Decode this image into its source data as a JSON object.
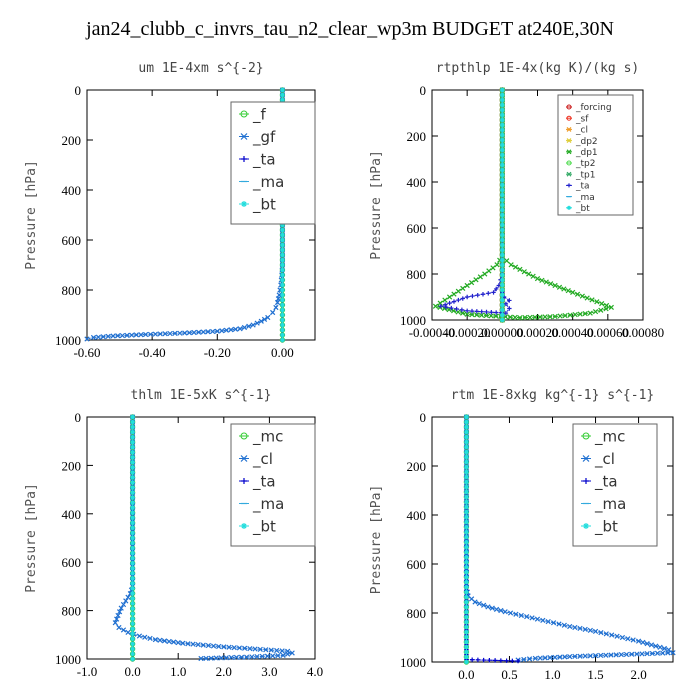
{
  "page": {
    "title": "jan24_clubb_c_invrs_tau_n2_clear_wp3m  BUDGET at240E,30N"
  },
  "chart_data": [
    {
      "type": "line",
      "title": "um   1E-4xm s^{-2}",
      "ylabel": "Pressure [hPa]",
      "xlim": [
        -0.6,
        0.1
      ],
      "ylim": [
        1000,
        0
      ],
      "xticks": [
        -0.6,
        -0.4,
        -0.2,
        0.0
      ],
      "xtick_labels": [
        "-0.60",
        "-0.40",
        "-0.20",
        "0.00"
      ],
      "yticks": [
        0,
        200,
        400,
        600,
        800,
        1000
      ],
      "ytick_labels": [
        "0",
        "200",
        "400",
        "600",
        "800",
        "1000"
      ],
      "legend_placement": "top-right",
      "series": [
        {
          "name": "_f",
          "color": "#33cc33",
          "marker": "o",
          "x": [
            0,
            0
          ],
          "y": [
            0,
            1000
          ]
        },
        {
          "name": "_gf",
          "color": "#1f6fd0",
          "marker": "x",
          "x": [
            0,
            0,
            -0.002,
            -0.005,
            -0.01,
            -0.015,
            -0.02,
            -0.03,
            -0.045,
            -0.065,
            -0.09,
            -0.13,
            -0.2,
            -0.3,
            -0.42,
            -0.52,
            -0.58,
            -0.6
          ],
          "y": [
            0,
            700,
            740,
            780,
            820,
            850,
            870,
            890,
            910,
            925,
            940,
            955,
            965,
            972,
            978,
            984,
            990,
            996
          ]
        },
        {
          "name": "_ta",
          "color": "#0000cc",
          "marker": "+",
          "x": [
            0,
            0
          ],
          "y": [
            0,
            1000
          ]
        },
        {
          "name": "_ma",
          "color": "#33aadd",
          "marker": "-",
          "x": [
            0,
            0
          ],
          "y": [
            0,
            1000
          ]
        },
        {
          "name": "_bt",
          "color": "#22dddd",
          "marker": "*",
          "x": [
            0,
            0
          ],
          "y": [
            0,
            1000
          ]
        }
      ]
    },
    {
      "type": "line",
      "title": "rtpthlp   1E-4x(kg K)/(kg s)",
      "ylabel": "Pressure [hPa]",
      "xlim": [
        -0.0004,
        0.0008
      ],
      "ylim": [
        1000,
        0
      ],
      "xticks": [
        -0.0004,
        -0.0002,
        0.0,
        0.0002,
        0.0004,
        0.0006,
        0.0008
      ],
      "xtick_labels": [
        "-0.00040",
        "-0.00020",
        "0.00000",
        "0.00020",
        "0.00040",
        "0.00060",
        "0.00080"
      ],
      "yticks": [
        0,
        200,
        400,
        600,
        800,
        1000
      ],
      "ytick_labels": [
        "0",
        "200",
        "400",
        "600",
        "800",
        "1000"
      ],
      "legend_placement": "top-right",
      "series": [
        {
          "name": "_forcing",
          "color": "#cc2222",
          "marker": "o",
          "x": [
            0,
            0
          ],
          "y": [
            0,
            1000
          ]
        },
        {
          "name": "_sf",
          "color": "#ee3322",
          "marker": "o",
          "x": [
            0,
            0
          ],
          "y": [
            0,
            1000
          ]
        },
        {
          "name": "_cl",
          "color": "#ee9922",
          "marker": "x",
          "x": [
            0,
            0
          ],
          "y": [
            0,
            1000
          ]
        },
        {
          "name": "_dp2",
          "color": "#ddcc33",
          "marker": "x",
          "x": [
            0,
            0
          ],
          "y": [
            0,
            1000
          ]
        },
        {
          "name": "_dp1",
          "color": "#22aa22",
          "marker": "x",
          "x": [
            0,
            0,
            -3e-05,
            -0.0001,
            -0.0002,
            -0.0003,
            -0.00038,
            -0.0002,
            0.0001,
            0.0003,
            0.0005,
            0.00062,
            0.0004,
            0.0002,
            5e-05,
            0
          ],
          "y": [
            0,
            720,
            760,
            800,
            850,
            900,
            940,
            975,
            990,
            985,
            970,
            945,
            880,
            820,
            760,
            725
          ]
        },
        {
          "name": "_tp2",
          "color": "#55dd55",
          "marker": "o",
          "x": [
            0,
            0
          ],
          "y": [
            0,
            1000
          ]
        },
        {
          "name": "_tp1",
          "color": "#33aa66",
          "marker": "x",
          "x": [
            0,
            0
          ],
          "y": [
            0,
            1000
          ]
        },
        {
          "name": "_ta",
          "color": "#2222cc",
          "marker": "+",
          "x": [
            0,
            0,
            -2e-05,
            -5e-05,
            -0.0002,
            -0.00035,
            -0.0002,
            2e-05,
            4e-05,
            2e-05,
            4e-05,
            1e-05,
            0
          ],
          "y": [
            0,
            800,
            850,
            880,
            900,
            940,
            960,
            970,
            950,
            930,
            915,
            900,
            880
          ]
        },
        {
          "name": "_ma",
          "color": "#33aadd",
          "marker": "-",
          "x": [
            0,
            0
          ],
          "y": [
            0,
            1000
          ]
        },
        {
          "name": "_bt",
          "color": "#22dddd",
          "marker": "*",
          "x": [
            0,
            0
          ],
          "y": [
            0,
            1000
          ]
        }
      ]
    },
    {
      "type": "line",
      "title": "thlm   1E-5xK s^{-1}",
      "ylabel": "Pressure [hPa]",
      "xlim": [
        -1.0,
        4.0
      ],
      "ylim": [
        1000,
        0
      ],
      "xticks": [
        -1.0,
        0.0,
        1.0,
        2.0,
        3.0,
        4.0
      ],
      "xtick_labels": [
        "-1.0",
        "0.0",
        "1.0",
        "2.0",
        "3.0",
        "4.0"
      ],
      "yticks": [
        0,
        200,
        400,
        600,
        800,
        1000
      ],
      "ytick_labels": [
        "0",
        "200",
        "400",
        "600",
        "800",
        "1000"
      ],
      "legend_placement": "top-right",
      "series": [
        {
          "name": "_mc",
          "color": "#33cc33",
          "marker": "o",
          "x": [
            0,
            0
          ],
          "y": [
            0,
            1000
          ]
        },
        {
          "name": "_cl",
          "color": "#1f6fd0",
          "marker": "x",
          "x": [
            0,
            0,
            -0.05,
            -0.15,
            -0.25,
            -0.32,
            -0.38,
            -0.3,
            -0.1,
            0.15,
            0.5,
            1.1,
            2.0,
            2.8,
            3.4,
            3.5,
            3.3,
            2.5,
            1.5
          ],
          "y": [
            0,
            700,
            730,
            760,
            790,
            820,
            850,
            870,
            890,
            905,
            920,
            935,
            950,
            960,
            968,
            975,
            985,
            992,
            998
          ]
        },
        {
          "name": "_ta",
          "color": "#0000cc",
          "marker": "+",
          "x": [
            0,
            0
          ],
          "y": [
            0,
            1000
          ]
        },
        {
          "name": "_ma",
          "color": "#33aadd",
          "marker": "-",
          "x": [
            0,
            0
          ],
          "y": [
            0,
            1000
          ]
        },
        {
          "name": "_bt",
          "color": "#22dddd",
          "marker": "*",
          "x": [
            0,
            0
          ],
          "y": [
            0,
            1000
          ]
        }
      ]
    },
    {
      "type": "line",
      "title": "rtm   1E-8xkg kg^{-1} s^{-1}",
      "ylabel": "Pressure [hPa]",
      "xlim": [
        -0.4,
        2.4
      ],
      "ylim": [
        1000,
        0
      ],
      "xticks": [
        0.0,
        0.5,
        1.0,
        1.5,
        2.0
      ],
      "xtick_labels": [
        "0.0",
        "0.5",
        "1.0",
        "1.5",
        "2.0"
      ],
      "yticks": [
        0,
        200,
        400,
        600,
        800,
        1000
      ],
      "ytick_labels": [
        "0",
        "200",
        "400",
        "600",
        "800",
        "1000"
      ],
      "legend_placement": "top-right",
      "series": [
        {
          "name": "_mc",
          "color": "#33cc33",
          "marker": "o",
          "x": [
            0,
            0
          ],
          "y": [
            0,
            1000
          ]
        },
        {
          "name": "_cl",
          "color": "#1f6fd0",
          "marker": "x",
          "x": [
            0,
            0,
            0.02,
            0.1,
            0.25,
            0.45,
            0.7,
            0.95,
            1.2,
            1.5,
            1.75,
            2.0,
            2.2,
            2.35,
            2.4,
            1.8,
            1.2,
            0.8,
            0.6
          ],
          "y": [
            0,
            700,
            730,
            755,
            775,
            795,
            815,
            835,
            855,
            875,
            895,
            915,
            935,
            950,
            962,
            970,
            978,
            985,
            992
          ]
        },
        {
          "name": "_ta",
          "color": "#0000cc",
          "marker": "+",
          "x": [
            0,
            0,
            0.2,
            0.4,
            0.6
          ],
          "y": [
            0,
            990,
            992,
            994,
            996
          ]
        },
        {
          "name": "_ma",
          "color": "#33aadd",
          "marker": "-",
          "x": [
            0,
            0
          ],
          "y": [
            0,
            1000
          ]
        },
        {
          "name": "_bt",
          "color": "#22dddd",
          "marker": "*",
          "x": [
            0,
            0
          ],
          "y": [
            0,
            1000
          ]
        }
      ]
    }
  ]
}
